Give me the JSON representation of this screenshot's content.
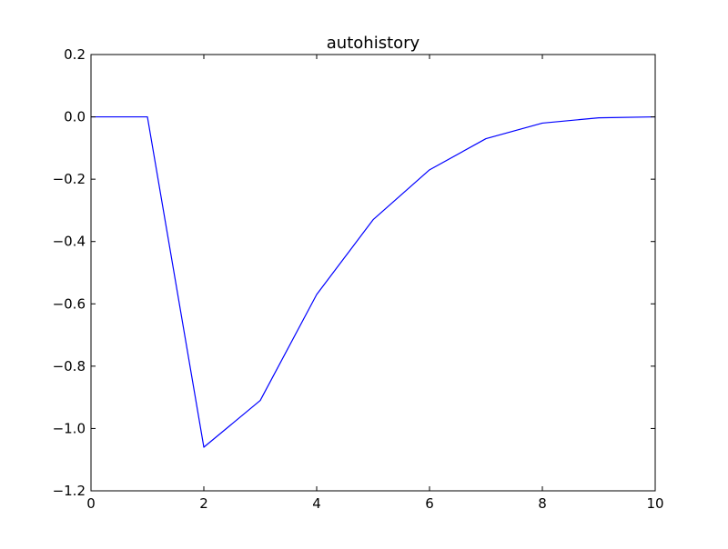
{
  "chart_data": {
    "type": "line",
    "title": "autohistory",
    "xlabel": "",
    "ylabel": "",
    "xlim": [
      0,
      10
    ],
    "ylim": [
      -1.2,
      0.2
    ],
    "x_ticks": [
      0,
      2,
      4,
      6,
      8,
      10
    ],
    "y_ticks": [
      0.2,
      0.0,
      -0.2,
      -0.4,
      -0.6,
      -0.8,
      -1.0,
      -1.2
    ],
    "x_tick_labels": [
      "0",
      "2",
      "4",
      "6",
      "8",
      "10"
    ],
    "y_tick_labels": [
      "0.2",
      "0.0",
      "−0.2",
      "−0.4",
      "−0.6",
      "−0.8",
      "−1.0",
      "−1.2"
    ],
    "grid": false,
    "legend": "none",
    "series": [
      {
        "color": "#0000ff",
        "x": [
          0,
          1,
          2,
          3,
          4,
          5,
          6,
          7,
          8,
          9,
          10
        ],
        "y": [
          0.0,
          0.0,
          -1.06,
          -0.91,
          -0.57,
          -0.33,
          -0.17,
          -0.07,
          -0.02,
          -0.003,
          0.0
        ]
      }
    ]
  }
}
